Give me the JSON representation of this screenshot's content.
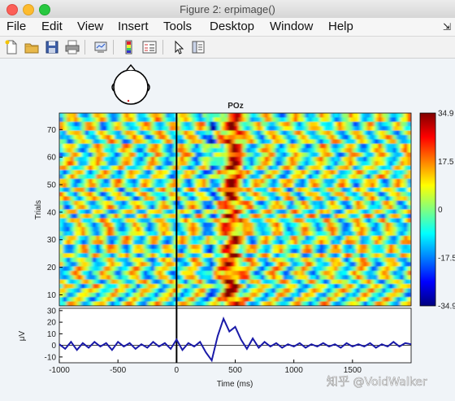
{
  "window": {
    "title": "Figure 2:  erpimage()"
  },
  "menu": [
    "File",
    "Edit",
    "View",
    "Insert",
    "Tools",
    "Desktop",
    "Window",
    "Help"
  ],
  "menu_overflow": "⇲",
  "toolbar": [
    {
      "name": "new-figure-button",
      "icon": "new-file-icon"
    },
    {
      "name": "open-file-button",
      "icon": "folder-icon"
    },
    {
      "name": "save-button",
      "icon": "save-icon"
    },
    {
      "name": "print-button",
      "icon": "print-icon"
    },
    {
      "name": "link-plot-button",
      "icon": "link-plot-icon"
    },
    {
      "name": "insert-colorbar-button",
      "icon": "colorbar-icon"
    },
    {
      "name": "insert-legend-button",
      "icon": "legend-icon"
    },
    {
      "name": "edit-plot-button",
      "icon": "pointer-icon"
    },
    {
      "name": "property-inspector-button",
      "icon": "inspector-icon"
    }
  ],
  "watermark": "知乎 @VoidWalker",
  "chart_data": [
    {
      "type": "heatmap",
      "title": "POz",
      "ylabel": "Trials",
      "ylim": [
        6,
        76
      ],
      "yticks": [
        10,
        20,
        30,
        40,
        50,
        60,
        70
      ],
      "xlim": [
        -1000,
        2000
      ],
      "event_line_x": 0,
      "colormap": "jet",
      "colorbar": {
        "ticks": [
          "34.9",
          "17.5",
          "0",
          "-17.5",
          "-34.9"
        ],
        "range": [
          -34.9,
          34.9
        ]
      },
      "grid": false,
      "notes": "single-trial ERP image; strong positive band ~400-550 ms across trials"
    },
    {
      "type": "line",
      "xlabel": "Time (ms)",
      "ylabel": "μV",
      "xlim": [
        -1000,
        2000
      ],
      "xticks": [
        -1000,
        -500,
        0,
        500,
        1000,
        1500
      ],
      "ylim": [
        -15,
        32
      ],
      "yticks": [
        30,
        20,
        10,
        0,
        -10
      ],
      "series": [
        {
          "color": "#1a1aa8",
          "x": [
            -1000,
            -950,
            -900,
            -850,
            -800,
            -750,
            -700,
            -650,
            -600,
            -550,
            -500,
            -450,
            -400,
            -350,
            -300,
            -250,
            -200,
            -150,
            -100,
            -50,
            0,
            50,
            100,
            150,
            200,
            250,
            300,
            350,
            400,
            450,
            500,
            550,
            600,
            650,
            700,
            750,
            800,
            850,
            900,
            950,
            1000,
            1050,
            1100,
            1150,
            1200,
            1250,
            1300,
            1350,
            1400,
            1450,
            1500,
            1550,
            1600,
            1650,
            1700,
            1750,
            1800,
            1850,
            1900,
            1950,
            2000
          ],
          "y": [
            1,
            -3,
            3,
            -4,
            2,
            -2,
            3,
            -1,
            2,
            -4,
            3,
            -1,
            2,
            -3,
            1,
            -2,
            3,
            -1,
            2,
            -3,
            5,
            -4,
            2,
            -1,
            3,
            -6,
            -13,
            8,
            23,
            12,
            16,
            5,
            -3,
            6,
            -2,
            3,
            -1,
            2,
            -2,
            1,
            -1,
            2,
            -2,
            1,
            -1,
            2,
            -1,
            1,
            -2,
            2,
            -1,
            1,
            -1,
            2,
            -2,
            1,
            -1,
            3,
            -1,
            2,
            1
          ]
        }
      ]
    }
  ]
}
